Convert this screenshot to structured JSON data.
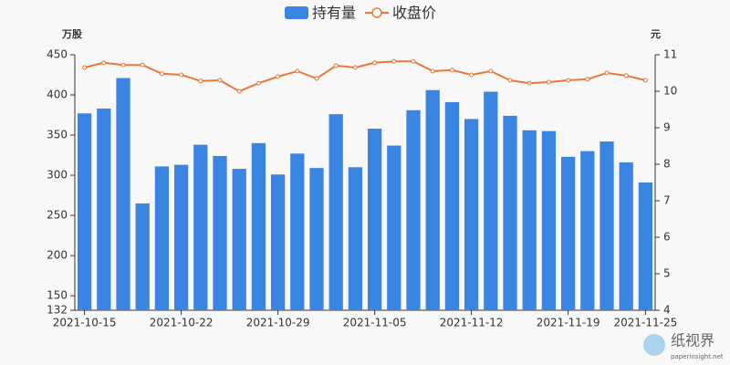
{
  "chart_data": {
    "type": "bar-line",
    "categories": [
      "2021-10-15",
      null,
      null,
      null,
      null,
      "2021-10-22",
      null,
      null,
      null,
      null,
      "2021-10-29",
      null,
      null,
      null,
      null,
      "2021-11-05",
      null,
      null,
      null,
      null,
      "2021-11-12",
      null,
      null,
      null,
      null,
      "2021-11-19",
      null,
      null,
      null,
      "2021-11-25"
    ],
    "series": [
      {
        "name": "持有量",
        "type": "bar",
        "color": "#3a84e2",
        "values": [
          377,
          383,
          421,
          265,
          311,
          313,
          338,
          324,
          308,
          340,
          301,
          327,
          309,
          376,
          310,
          358,
          337,
          381,
          406,
          391,
          370,
          404,
          374,
          356,
          355,
          323,
          330,
          342,
          316,
          291
        ]
      },
      {
        "name": "收盘价",
        "type": "line",
        "axis": "y2",
        "color": "#e8793a",
        "values": [
          10.65,
          10.78,
          10.72,
          10.72,
          10.48,
          10.45,
          10.28,
          10.3,
          10.0,
          10.22,
          10.4,
          10.55,
          10.35,
          10.7,
          10.65,
          10.78,
          10.82,
          10.82,
          10.55,
          10.58,
          10.45,
          10.55,
          10.3,
          10.22,
          10.25,
          10.3,
          10.33,
          10.5,
          10.43,
          10.3
        ]
      }
    ],
    "y_label": "万股",
    "y2_label": "元",
    "ylim": [
      132,
      450
    ],
    "yticks": [
      132,
      150,
      200,
      250,
      300,
      350,
      400,
      450
    ],
    "y2lim": [
      4,
      11
    ],
    "y2ticks": [
      4,
      5,
      6,
      7,
      8,
      9,
      10,
      11
    ],
    "grid": false,
    "legend": "top",
    "watermark": {
      "name": "纸视界",
      "url": "paperinsight.net"
    }
  }
}
